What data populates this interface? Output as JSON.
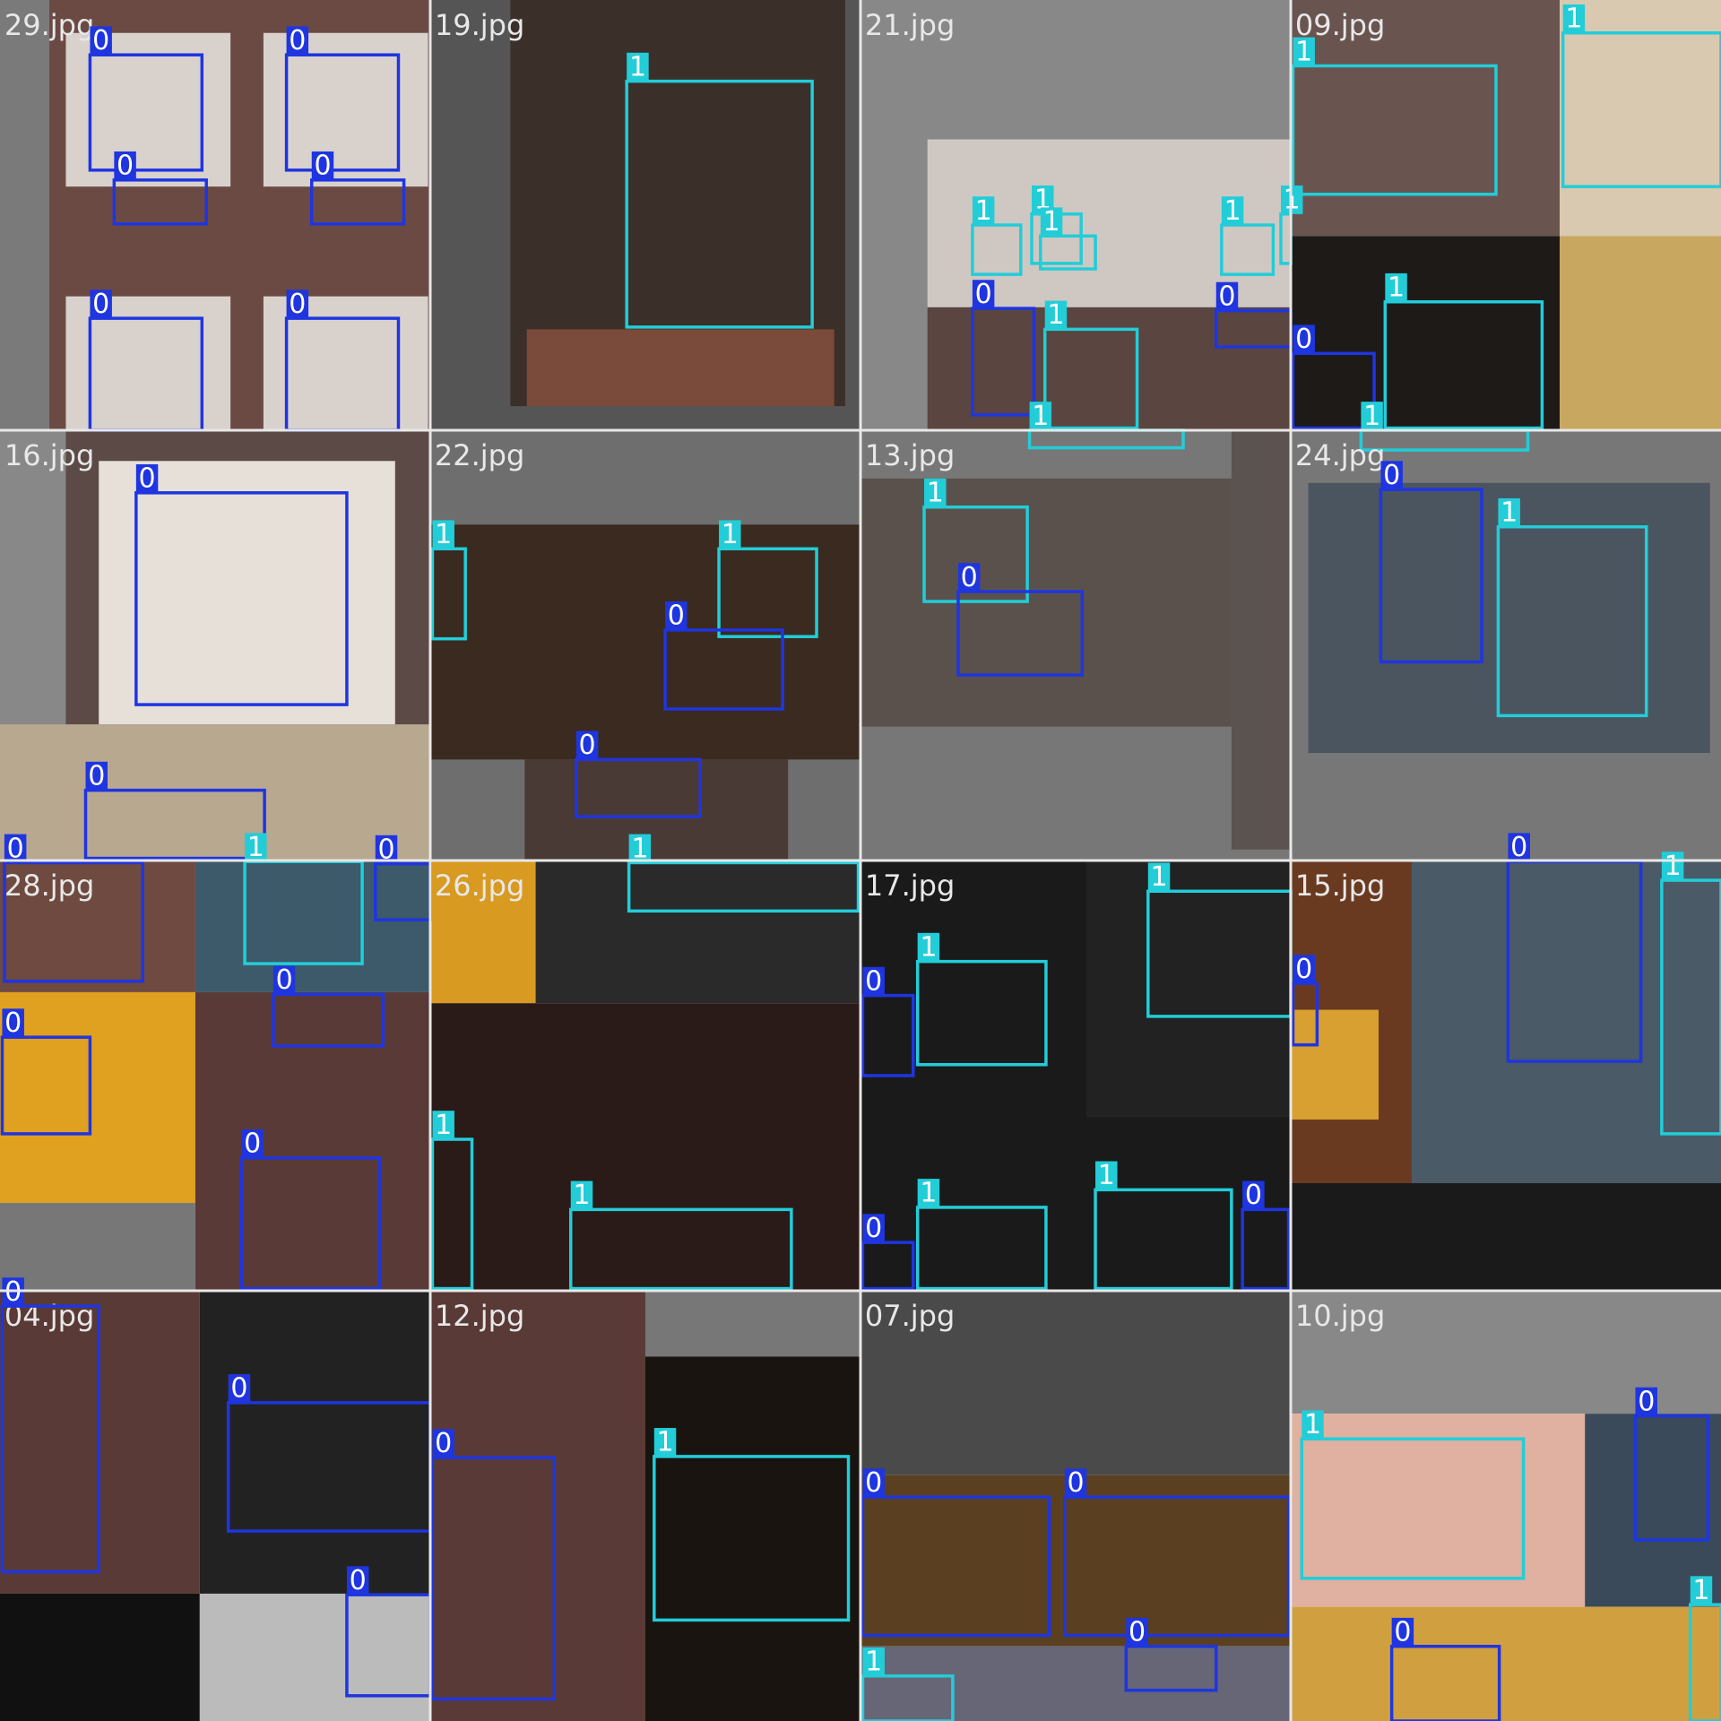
{
  "class_colors": {
    "0": "#1f35e0",
    "1": "#22cdd8"
  },
  "tiles": [
    {
      "file": "29.jpg",
      "boxes": [
        "0",
        "0",
        "0",
        "0",
        "0",
        "0"
      ]
    },
    {
      "file": "19.jpg",
      "boxes": [
        "1"
      ]
    },
    {
      "file": "21.jpg",
      "boxes": [
        "1",
        "1",
        "1",
        "0",
        "1",
        "1",
        "1",
        "1",
        "0"
      ]
    },
    {
      "file": "09.jpg",
      "boxes": [
        "1",
        "1",
        "0",
        "1",
        "1"
      ]
    },
    {
      "file": "16.jpg",
      "boxes": [
        "0",
        "0"
      ]
    },
    {
      "file": "22.jpg",
      "boxes": [
        "1",
        "1",
        "0",
        "0"
      ]
    },
    {
      "file": "13.jpg",
      "boxes": [
        "1",
        "0"
      ]
    },
    {
      "file": "24.jpg",
      "boxes": [
        "0",
        "1"
      ]
    },
    {
      "file": "28.jpg",
      "boxes": [
        "0",
        "1",
        "0",
        "0",
        "0",
        "0"
      ]
    },
    {
      "file": "26.jpg",
      "boxes": [
        "1",
        "1",
        "1"
      ]
    },
    {
      "file": "17.jpg",
      "boxes": [
        "0",
        "1",
        "1",
        "0",
        "1",
        "1",
        "0"
      ]
    },
    {
      "file": "15.jpg",
      "boxes": [
        "0",
        "0",
        "1"
      ]
    },
    {
      "file": "04.jpg",
      "boxes": [
        "0",
        "0",
        "0"
      ]
    },
    {
      "file": "12.jpg",
      "boxes": [
        "0",
        "1"
      ]
    },
    {
      "file": "07.jpg",
      "boxes": [
        "0",
        "0",
        "0",
        "1"
      ]
    },
    {
      "file": "10.jpg",
      "boxes": [
        "1",
        "0",
        "0",
        "1"
      ]
    }
  ]
}
